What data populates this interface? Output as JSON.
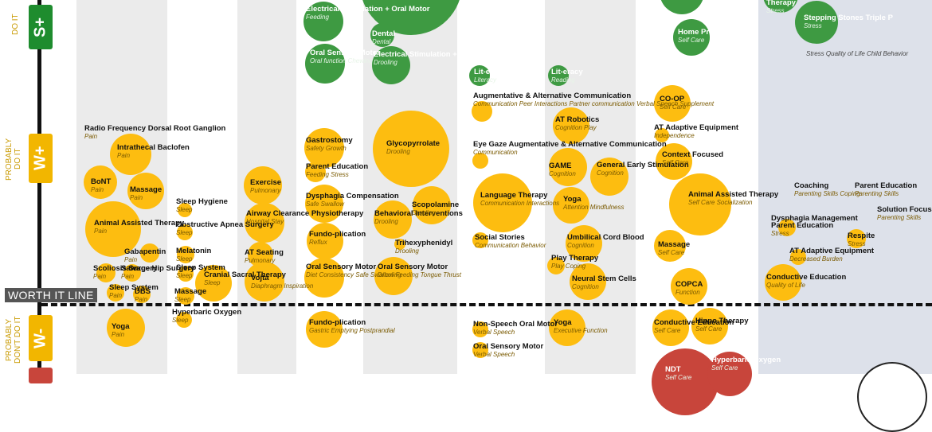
{
  "chart_data": {
    "type": "scatter",
    "title": "",
    "xlabel": "",
    "ylabel": "",
    "threshold_line": "WORTH IT LINE",
    "tiers": [
      {
        "code": "S+",
        "caption": "DO IT",
        "color": "#1e8c2e"
      },
      {
        "code": "W+",
        "caption": "PROBABLY DO IT",
        "color": "#f2b600"
      },
      {
        "code": "W-",
        "caption": "PROBABLY DON'T DO IT",
        "color": "#f2b600"
      }
    ],
    "colors": {
      "strong": "#3e9a42",
      "weak": "#fdbd10",
      "negative": "#c8453b"
    },
    "items": [
      {
        "label": "Radio Frequency Dorsal Root Ganglion",
        "sub": "Pain",
        "color": "y",
        "d": 0,
        "x": 128,
        "y": 192,
        "lx": 106,
        "ly": 157
      },
      {
        "label": "Intrathecal Baclofen",
        "sub": "Pain",
        "color": "y",
        "d": 52,
        "x": 164,
        "y": 194,
        "lx": 147,
        "ly": 181
      },
      {
        "label": "BoNT",
        "sub": "Pain",
        "color": "y",
        "d": 42,
        "x": 126,
        "y": 229,
        "lx": 114,
        "ly": 224
      },
      {
        "label": "Massage",
        "sub": "Pain",
        "color": "y",
        "d": 46,
        "x": 183,
        "y": 240,
        "lx": 163,
        "ly": 234
      },
      {
        "label": "Animal Assisted Therapy",
        "sub": "Pain",
        "color": "y",
        "d": 70,
        "x": 142,
        "y": 288,
        "lx": 118,
        "ly": 276
      },
      {
        "label": "Gabapentin",
        "sub": "Pain",
        "color": "y",
        "d": 24,
        "x": 188,
        "y": 318,
        "lx": 156,
        "ly": 312
      },
      {
        "label": "Scoliosis Surgery",
        "sub": "Pain",
        "color": "y",
        "d": 24,
        "x": 133,
        "y": 343,
        "lx": 117,
        "ly": 333
      },
      {
        "label": "Salvage Hip Surgery",
        "sub": "Pain",
        "color": "y",
        "d": 22,
        "x": 166,
        "y": 343,
        "lx": 152,
        "ly": 333
      },
      {
        "label": "Sleep System",
        "sub": "Pain",
        "color": "y",
        "d": 22,
        "x": 145,
        "y": 368,
        "lx": 137,
        "ly": 357
      },
      {
        "label": "DBS",
        "sub": "Pain",
        "color": "y",
        "d": 22,
        "x": 178,
        "y": 370,
        "lx": 169,
        "ly": 362
      },
      {
        "label": "Yoga",
        "sub": "Pain",
        "color": "y",
        "d": 48,
        "x": 158,
        "y": 412,
        "lx": 140,
        "ly": 406
      },
      {
        "label": "Sleep Hygiene",
        "sub": "Sleep",
        "color": "y",
        "d": 18,
        "x": 232,
        "y": 264,
        "lx": 221,
        "ly": 249
      },
      {
        "label": "Obstructive Apnea Surgery",
        "sub": "Sleep",
        "color": "y",
        "d": 20,
        "x": 232,
        "y": 292,
        "lx": 221,
        "ly": 278
      },
      {
        "label": "Melatonin",
        "sub": "Sleep",
        "color": "y",
        "d": 22,
        "x": 233,
        "y": 320,
        "lx": 221,
        "ly": 311
      },
      {
        "label": "Sleep System",
        "sub": "Sleep",
        "color": "y",
        "d": 20,
        "x": 233,
        "y": 344,
        "lx": 221,
        "ly": 332
      },
      {
        "label": "Cranial Sacral Therapy",
        "sub": "Sleep",
        "color": "y",
        "d": 46,
        "x": 268,
        "y": 356,
        "lx": 256,
        "ly": 341
      },
      {
        "label": "Massage",
        "sub": "Sleep",
        "color": "y",
        "d": 22,
        "x": 233,
        "y": 372,
        "lx": 219,
        "ly": 362
      },
      {
        "label": "Hyperbaric Oxygen",
        "sub": "Sleep",
        "color": "y",
        "d": 20,
        "x": 231,
        "y": 402,
        "lx": 216,
        "ly": 388
      },
      {
        "label": "Exercise",
        "sub": "Pulmonary",
        "color": "y",
        "d": 48,
        "x": 330,
        "y": 233,
        "lx": 314,
        "ly": 225
      },
      {
        "label": "Airway Clearance Physiotherapy",
        "sub": "Hospital Stay",
        "color": "y",
        "d": 50,
        "x": 332,
        "y": 280,
        "lx": 309,
        "ly": 264
      },
      {
        "label": "AT Seating",
        "sub": "Pulmonary",
        "color": "y",
        "d": 32,
        "x": 327,
        "y": 320,
        "lx": 307,
        "ly": 313
      },
      {
        "label": "Vojta",
        "sub": "Diaphragm Inspiration",
        "color": "y",
        "d": 50,
        "x": 332,
        "y": 354,
        "lx": 315,
        "ly": 345
      },
      {
        "label": "Electrical Stimulation + Oral Motor",
        "sub": "Feeding",
        "color": "g",
        "d": 50,
        "x": 406,
        "y": 27,
        "lx": 384,
        "ly": 7,
        "w": 1
      },
      {
        "label": "Oral Sensory Motor",
        "sub": "Oral function Chewing",
        "color": "g",
        "d": 50,
        "x": 408,
        "y": 80,
        "lx": 389,
        "ly": 62,
        "w": 1
      },
      {
        "label": "Gastrostomy",
        "sub": "Safety Growth",
        "color": "y",
        "d": 50,
        "x": 407,
        "y": 186,
        "lx": 384,
        "ly": 172
      },
      {
        "label": "Parent Education",
        "sub": "Feeding Stress",
        "color": "y",
        "d": 26,
        "x": 396,
        "y": 216,
        "lx": 384,
        "ly": 205
      },
      {
        "label": "Dysphagia Compensation",
        "sub": "Safe Swallow",
        "color": "y",
        "d": 48,
        "x": 407,
        "y": 256,
        "lx": 384,
        "ly": 242
      },
      {
        "label": "Fundo-plication",
        "sub": "Reflux",
        "color": "y",
        "d": 46,
        "x": 408,
        "y": 303,
        "lx": 388,
        "ly": 290
      },
      {
        "label": "Oral Sensory Motor",
        "sub": "Diet Consistency Safe Swallow Feeding Tongue Thrust",
        "color": "y",
        "d": 50,
        "x": 407,
        "y": 349,
        "lx": 384,
        "ly": 331
      },
      {
        "label": "Fundo-plication",
        "sub": "Gastric Emptying Postprandial",
        "color": "y",
        "d": 46,
        "x": 407,
        "y": 414,
        "lx": 388,
        "ly": 401
      },
      {
        "label": "Dental",
        "sub": "Dental",
        "color": "g",
        "d": 30,
        "x": 480,
        "y": 44,
        "lx": 467,
        "ly": 38,
        "w": 1
      },
      {
        "label": "Electrical Stimulation + Oral Motor",
        "sub": "Drooling",
        "color": "g",
        "d": 48,
        "x": 491,
        "y": 82,
        "lx": 469,
        "ly": 64,
        "w": 1
      },
      {
        "label": "Glycopyrrolate",
        "sub": "Drooling",
        "color": "y",
        "d": 96,
        "x": 516,
        "y": 187,
        "lx": 485,
        "ly": 176
      },
      {
        "label": "Behavioral Interventions",
        "sub": "Drooling",
        "color": "y",
        "d": 48,
        "x": 493,
        "y": 276,
        "lx": 470,
        "ly": 264
      },
      {
        "label": "Scopolamine",
        "sub": "Drooling",
        "color": "y",
        "d": 48,
        "x": 542,
        "y": 258,
        "lx": 517,
        "ly": 253
      },
      {
        "label": "Trihexyphenidyl",
        "sub": "Drooling",
        "color": "y",
        "d": 14,
        "x": 502,
        "y": 307,
        "lx": 496,
        "ly": 301
      },
      {
        "label": "Oral Sensory Motor",
        "sub": "Drooling",
        "color": "y",
        "d": 48,
        "x": 494,
        "y": 347,
        "lx": 474,
        "ly": 331
      },
      {
        "label": "Lit-eracy",
        "sub": "Literacy",
        "color": "g",
        "d": 26,
        "x": 602,
        "y": 95,
        "lx": 595,
        "ly": 86,
        "w": 1
      },
      {
        "label": "Augmentative & Alternative Communication",
        "sub": "Communication Peer Interactions Partner communication Verbal Speech Supplement",
        "color": "y",
        "d": 26,
        "x": 605,
        "y": 140,
        "lx": 594,
        "ly": 116
      },
      {
        "label": "Eye Gaze Augmentative & Alternative Communication",
        "sub": "Communication",
        "color": "y",
        "d": 20,
        "x": 603,
        "y": 202,
        "lx": 594,
        "ly": 177
      },
      {
        "label": "Language Therapy",
        "sub": "Communication Interactions",
        "color": "y",
        "d": 74,
        "x": 631,
        "y": 255,
        "lx": 603,
        "ly": 241
      },
      {
        "label": "Social Stories",
        "sub": "Communication Behavior",
        "color": "y",
        "d": 20,
        "x": 603,
        "y": 302,
        "lx": 596,
        "ly": 294
      },
      {
        "label": "Non-Speech Oral Motor",
        "sub": "Verbal Speech",
        "color": "y",
        "d": 20,
        "x": 603,
        "y": 414,
        "lx": 594,
        "ly": 403
      },
      {
        "label": "Oral Sensory Motor",
        "sub": "Verbal Speech",
        "color": "y",
        "d": 20,
        "x": 603,
        "y": 440,
        "lx": 594,
        "ly": 431
      },
      {
        "label": "Lit-eracy",
        "sub": "Reading",
        "color": "g",
        "d": 26,
        "x": 701,
        "y": 95,
        "lx": 692,
        "ly": 86,
        "w": 1
      },
      {
        "label": "AT Robotics",
        "sub": "Cognition Play",
        "color": "y",
        "d": 46,
        "x": 717,
        "y": 158,
        "lx": 697,
        "ly": 146
      },
      {
        "label": "GAME",
        "sub": "Cognition",
        "color": "y",
        "d": 48,
        "x": 713,
        "y": 210,
        "lx": 689,
        "ly": 204
      },
      {
        "label": "General Early Stimulation",
        "sub": "Cognition",
        "color": "y",
        "d": 48,
        "x": 765,
        "y": 222,
        "lx": 749,
        "ly": 203
      },
      {
        "label": "Yoga",
        "sub": "Attention Mindfulness",
        "color": "y",
        "d": 46,
        "x": 717,
        "y": 258,
        "lx": 707,
        "ly": 246
      },
      {
        "label": "Umbilical Cord Blood",
        "sub": "Cognition",
        "color": "y",
        "d": 46,
        "x": 733,
        "y": 306,
        "lx": 712,
        "ly": 294
      },
      {
        "label": "Play Therapy",
        "sub": "Play Coping",
        "color": "y",
        "d": 22,
        "x": 698,
        "y": 334,
        "lx": 692,
        "ly": 320
      },
      {
        "label": "Neural Stem Cells",
        "sub": "Cognition",
        "color": "y",
        "d": 46,
        "x": 738,
        "y": 354,
        "lx": 718,
        "ly": 346
      },
      {
        "label": "Yoga",
        "sub": "Executive Function",
        "color": "y",
        "d": 46,
        "x": 712,
        "y": 412,
        "lx": 695,
        "ly": 401
      },
      {
        "label": "Home Program",
        "sub": "Self Care",
        "color": "g",
        "d": 46,
        "x": 868,
        "y": 47,
        "lx": 851,
        "ly": 36,
        "w": 1
      },
      {
        "label": "CO-OP",
        "sub": "Self Care",
        "color": "y",
        "d": 46,
        "x": 844,
        "y": 130,
        "lx": 828,
        "ly": 120
      },
      {
        "label": "AT Adaptive Equipment",
        "sub": "Independence",
        "color": "y",
        "d": 18,
        "x": 831,
        "y": 170,
        "lx": 821,
        "ly": 156
      },
      {
        "label": "Context Focused",
        "sub": "Self Care",
        "color": "y",
        "d": 46,
        "x": 846,
        "y": 203,
        "lx": 831,
        "ly": 190
      },
      {
        "label": "Animal Assisted Therapy",
        "sub": "Self Care Socialization",
        "color": "y",
        "d": 78,
        "x": 879,
        "y": 257,
        "lx": 864,
        "ly": 240
      },
      {
        "label": "Massage",
        "sub": "Self Care",
        "color": "y",
        "d": 40,
        "x": 841,
        "y": 309,
        "lx": 826,
        "ly": 303
      },
      {
        "label": "COPCA",
        "sub": "Function",
        "color": "y",
        "d": 46,
        "x": 865,
        "y": 360,
        "lx": 848,
        "ly": 353
      },
      {
        "label": "Conductive Education",
        "sub": "Self Care",
        "color": "y",
        "d": 46,
        "x": 842,
        "y": 412,
        "lx": 821,
        "ly": 401
      },
      {
        "label": "Hippo Therapy",
        "sub": "Self Care",
        "color": "y",
        "d": 46,
        "x": 891,
        "y": 410,
        "lx": 873,
        "ly": 399
      },
      {
        "label": "NDT",
        "sub": "Self Care",
        "color": "r",
        "d": 84,
        "x": 860,
        "y": 480,
        "lx": 835,
        "ly": 460,
        "w": 1
      },
      {
        "label": "Hyperbaric Oxygen",
        "sub": "Self Care",
        "color": "r",
        "d": 56,
        "x": 916,
        "y": 470,
        "lx": 893,
        "ly": 448,
        "w": 1
      },
      {
        "label": "Therapy",
        "sub": "Stress",
        "color": "g",
        "d": 44,
        "x": 980,
        "y": -6,
        "lx": 962,
        "ly": -1,
        "w": 1
      },
      {
        "label": "Stepping Stones Triple P",
        "sub": "Stress",
        "color": "g",
        "d": 54,
        "x": 1025,
        "y": 28,
        "lx": 1009,
        "ly": 18,
        "w": 1
      },
      {
        "label": "",
        "sub": "Stress Quality of Life Child Behavior",
        "color": "y",
        "d": 0,
        "x": 0,
        "y": 0,
        "lx": 1012,
        "ly": 63,
        "k": 1
      },
      {
        "label": "Coaching",
        "sub": "Parenting Skills Coping",
        "color": "y",
        "d": 0,
        "x": 0,
        "y": 0,
        "lx": 997,
        "ly": 229
      },
      {
        "label": "Parent Education",
        "sub": "Parenting Skills",
        "color": "y",
        "d": 0,
        "x": 0,
        "y": 0,
        "lx": 1073,
        "ly": 229
      },
      {
        "label": "Dysphagia Management",
        "sub": "",
        "color": "y",
        "d": 0,
        "x": 0,
        "y": 0,
        "lx": 968,
        "ly": 270
      },
      {
        "label": "Parent Education",
        "sub": "Stress",
        "color": "y",
        "d": 22,
        "x": 988,
        "y": 286,
        "lx": 968,
        "ly": 279
      },
      {
        "label": "Solution Focused Therapy",
        "sub": "Parenting Skills",
        "color": "y",
        "d": 0,
        "x": 0,
        "y": 0,
        "lx": 1101,
        "ly": 259
      },
      {
        "label": "Respite",
        "sub": "Stress",
        "color": "y",
        "d": 24,
        "x": 1075,
        "y": 300,
        "lx": 1064,
        "ly": 292
      },
      {
        "label": "AT Adaptive Equipment",
        "sub": "Decreased Burden",
        "color": "y",
        "d": 20,
        "x": 1002,
        "y": 323,
        "lx": 991,
        "ly": 311
      },
      {
        "label": "Conductive Education",
        "sub": "Quality of Life",
        "color": "y",
        "d": 46,
        "x": 983,
        "y": 355,
        "lx": 962,
        "ly": 344
      }
    ],
    "extra_bubbles": [
      {
        "color": "g",
        "d": 128,
        "x": 516,
        "y": -20
      },
      {
        "color": "g",
        "d": 56,
        "x": 856,
        "y": -10
      }
    ]
  }
}
